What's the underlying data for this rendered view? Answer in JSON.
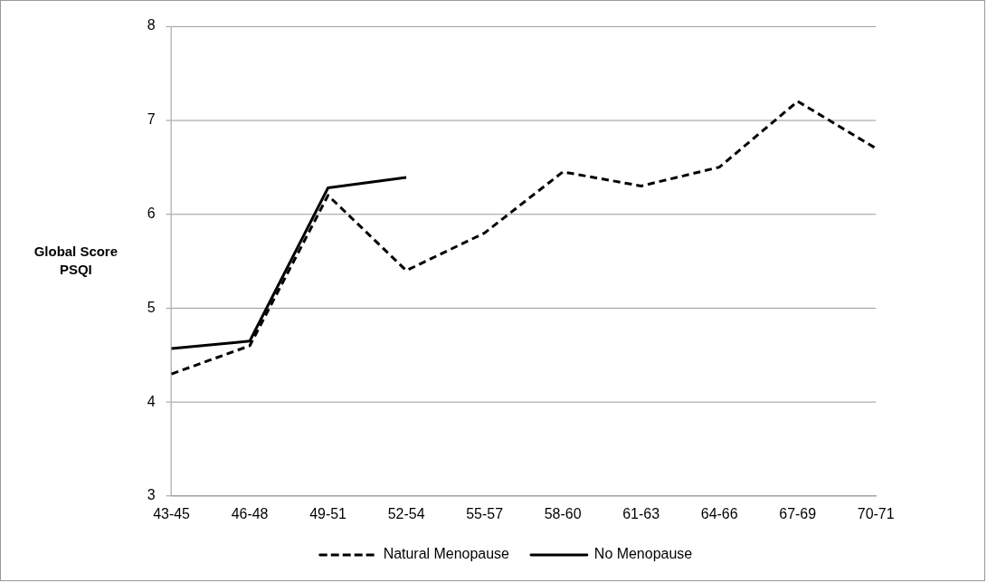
{
  "chart_data": {
    "type": "line",
    "ylabel": "Global Score PSQI",
    "categories": [
      "43-45",
      "46-48",
      "49-51",
      "52-54",
      "55-57",
      "58-60",
      "61-63",
      "64-66",
      "67-69",
      "70-71"
    ],
    "series": [
      {
        "name": "Natural Menopause",
        "color": "#000000",
        "line_style": "dashed",
        "values": [
          4.3,
          4.6,
          6.2,
          5.4,
          5.8,
          6.45,
          6.3,
          6.5,
          7.2,
          6.7
        ]
      },
      {
        "name": "No Menopause",
        "color": "#000000",
        "line_style": "solid",
        "values": [
          4.57,
          4.65,
          6.28,
          6.39,
          null,
          null,
          null,
          null,
          null,
          null
        ]
      }
    ],
    "ylim": [
      3,
      8
    ],
    "yticks": [
      3,
      4,
      5,
      6,
      7,
      8
    ],
    "grid": "y",
    "legend": "bottom",
    "marker": "none"
  }
}
